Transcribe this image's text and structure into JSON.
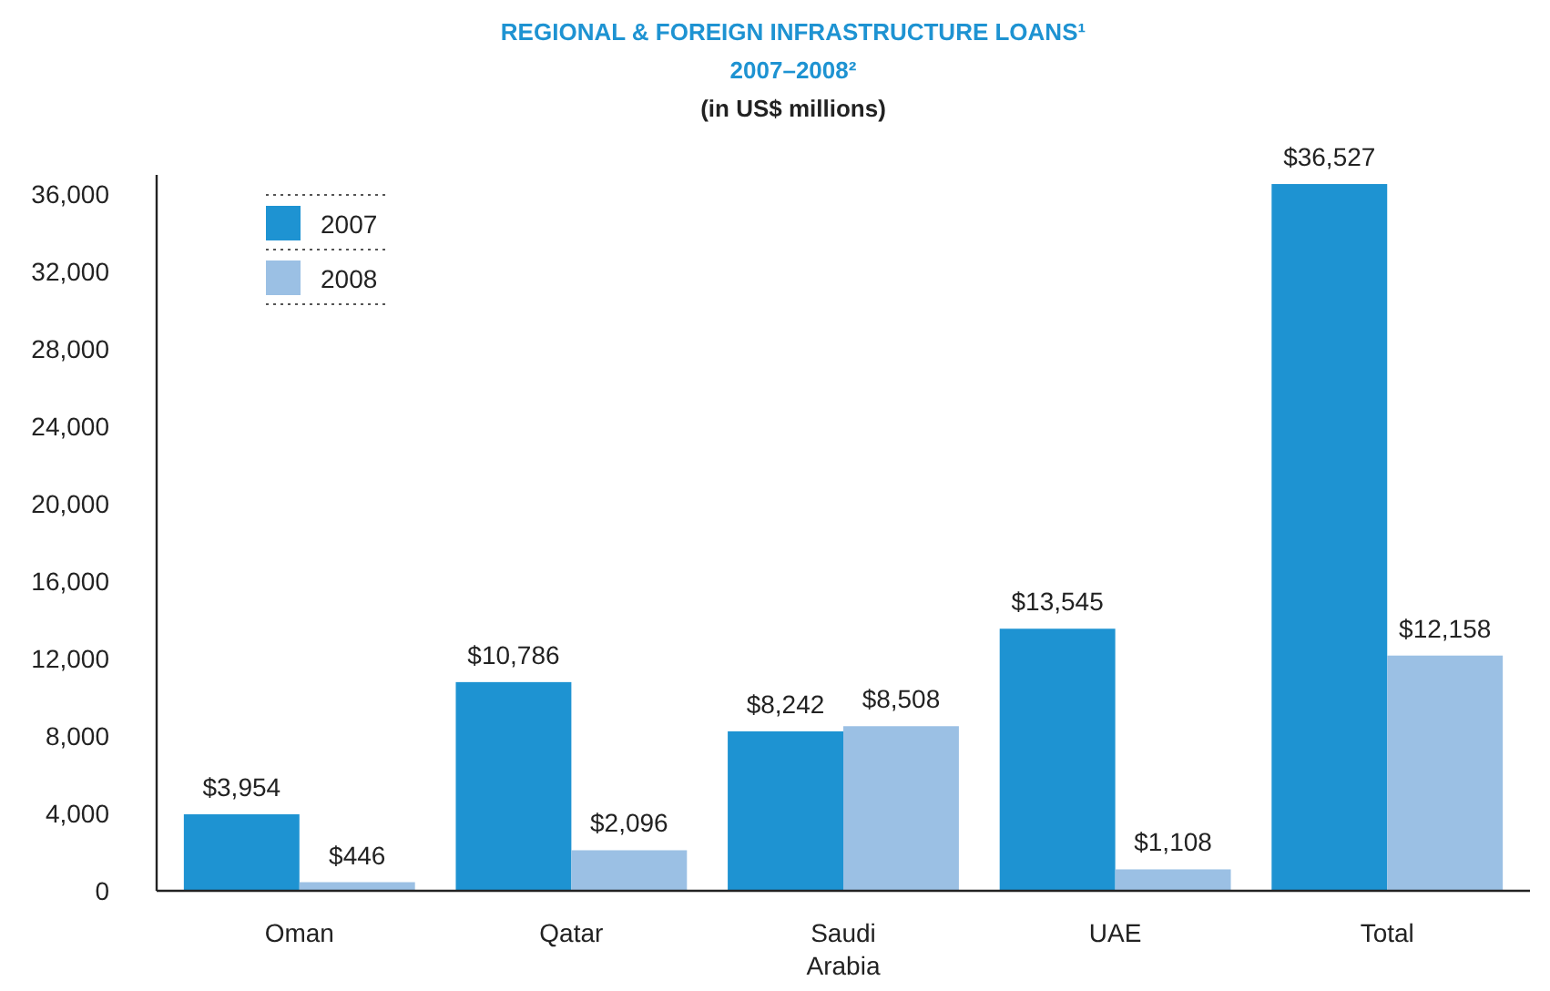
{
  "chart_data": {
    "type": "bar",
    "title": "REGIONAL & FOREIGN INFRASTRUCTURE LOANS¹",
    "subtitle": "2007–2008²",
    "ylabel": "(in US$ millions)",
    "categories": [
      "Oman",
      "Qatar",
      "Saudi Arabia",
      "UAE",
      "Total"
    ],
    "series": [
      {
        "name": "2007",
        "color": "#1e93d2",
        "values": [
          3954,
          10786,
          8242,
          13545,
          36527
        ],
        "value_labels": [
          "$3,954",
          "$10,786",
          "$8,242",
          "$13,545",
          "$36,527"
        ]
      },
      {
        "name": "2008",
        "color": "#9bc0e4",
        "values": [
          446,
          2096,
          8508,
          1108,
          12158
        ],
        "value_labels": [
          "$446",
          "$2,096",
          "$8,508",
          "$1,108",
          "$12,158"
        ]
      }
    ],
    "ylim": [
      0,
      37000
    ],
    "yticks": [
      {
        "value": 0,
        "label": "0"
      },
      {
        "value": 4000,
        "label": "4,000"
      },
      {
        "value": 8000,
        "label": "8,000"
      },
      {
        "value": 12000,
        "label": "12,000"
      },
      {
        "value": 16000,
        "label": "16,000"
      },
      {
        "value": 20000,
        "label": "20,000"
      },
      {
        "value": 24000,
        "label": "24,000"
      },
      {
        "value": 28000,
        "label": "28,000"
      },
      {
        "value": 32000,
        "label": "32,000"
      },
      {
        "value": 36000,
        "label": "36,000"
      }
    ],
    "grid": false,
    "legend": "top left"
  }
}
